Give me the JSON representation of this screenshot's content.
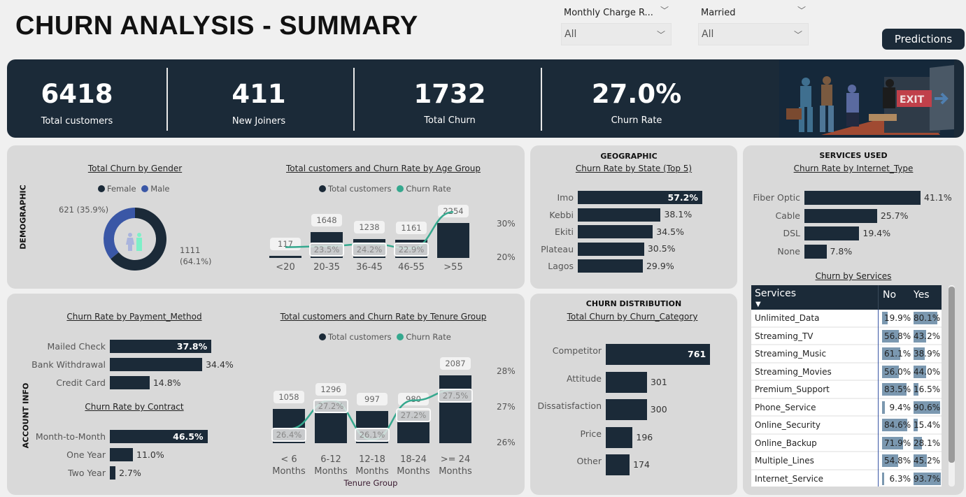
{
  "header": {
    "title": "CHURN ANALYSIS - SUMMARY",
    "predictions_label": "Predictions",
    "filters": [
      {
        "label": "Monthly Charge R...",
        "value": "All"
      },
      {
        "label": "Married",
        "value": "All"
      }
    ]
  },
  "kpis": [
    {
      "value": "6418",
      "label": "Total customers"
    },
    {
      "value": "411",
      "label": "New Joiners"
    },
    {
      "value": "1732",
      "label": "Total Churn"
    },
    {
      "value": "27.0%",
      "label": "Churn Rate"
    }
  ],
  "banner_image": {
    "icon": "people-running-to-exit-illustration",
    "sign_text": "EXIT"
  },
  "colors": {
    "dark": "#1b2a38",
    "male": "#3a57a6",
    "line": "#35a88e",
    "bar_light": "#7b98b0"
  },
  "demographic": {
    "section_label": "DEMOGRAPHIC",
    "gender": {
      "title": "Total Churn by Gender",
      "legend": [
        "Female",
        "Male"
      ],
      "chart_data": {
        "type": "pie",
        "categories": [
          "Female",
          "Male"
        ],
        "values": [
          1111,
          621
        ],
        "percents": [
          64.1,
          35.9
        ],
        "labels": [
          "1111 (64.1%)",
          "621 (35.9%)"
        ]
      }
    },
    "age": {
      "title": "Total customers and Churn Rate by Age Group",
      "legend": [
        "Total customers",
        "Churn Rate"
      ],
      "chart_data": {
        "type": "bar+line",
        "categories": [
          "<20",
          "20-35",
          "36-45",
          "46-55",
          ">55"
        ],
        "series": [
          {
            "name": "Total customers",
            "values": [
              117,
              1648,
              1238,
              1161,
              2254
            ]
          },
          {
            "name": "Churn Rate",
            "values": [
              23.2,
              23.5,
              24.2,
              22.9,
              33.7
            ],
            "labels": [
              "",
              "23.5%",
              "24.2%",
              "22.9%",
              ""
            ]
          }
        ],
        "y2_ticks": [
          "20%",
          "30%"
        ],
        "y2lim": [
          20,
          30
        ]
      }
    }
  },
  "account": {
    "section_label": "ACCOUNT INFO",
    "payment": {
      "title": "Churn Rate by Payment_Method",
      "chart_data": {
        "type": "bar",
        "categories": [
          "Mailed Check",
          "Bank Withdrawal",
          "Credit Card"
        ],
        "values": [
          37.8,
          34.4,
          14.8
        ],
        "labels": [
          "37.8%",
          "34.4%",
          "14.8%"
        ]
      }
    },
    "contract": {
      "title": "Churn Rate by Contract",
      "chart_data": {
        "type": "bar",
        "categories": [
          "Month-to-Month",
          "One Year",
          "Two Year"
        ],
        "values": [
          46.5,
          11.0,
          2.7
        ],
        "labels": [
          "46.5%",
          "11.0%",
          "2.7%"
        ]
      }
    },
    "tenure": {
      "title": "Total customers and Churn Rate by Tenure Group",
      "legend": [
        "Total customers",
        "Churn Rate"
      ],
      "xlabel": "Tenure Group",
      "chart_data": {
        "type": "bar+line",
        "categories": [
          [
            "< 6",
            "Months"
          ],
          [
            "6-12",
            "Months"
          ],
          [
            "12-18",
            "Months"
          ],
          [
            "18-24",
            "Months"
          ],
          [
            ">= 24",
            "Months"
          ]
        ],
        "series": [
          {
            "name": "Total customers",
            "values": [
              1058,
              1296,
              997,
              980,
              2087
            ]
          },
          {
            "name": "Churn Rate",
            "values": [
              26.4,
              27.2,
              26.1,
              27.2,
              27.5
            ],
            "labels": [
              "26.4%",
              "27.2%",
              "26.1%",
              "27.2%",
              "27.5%"
            ]
          }
        ],
        "y2_ticks": [
          "26%",
          "27%",
          "28%"
        ],
        "y2lim": [
          26,
          28
        ]
      }
    }
  },
  "geographic": {
    "section_label": "GEOGRAPHIC",
    "title": "Churn Rate by State (Top 5)",
    "chart_data": {
      "type": "bar",
      "categories": [
        "Imo",
        "Kebbi",
        "Ekiti",
        "Plateau",
        "Lagos"
      ],
      "values": [
        57.2,
        38.1,
        34.5,
        30.5,
        29.9
      ],
      "labels": [
        "57.2%",
        "38.1%",
        "34.5%",
        "30.5%",
        "29.9%"
      ]
    }
  },
  "distribution": {
    "section_label": "CHURN DISTRIBUTION",
    "title": "Total Churn by Churn_Category",
    "chart_data": {
      "type": "bar",
      "categories": [
        "Competitor",
        "Attitude",
        "Dissatisfaction",
        "Price",
        "Other"
      ],
      "values": [
        761,
        301,
        300,
        196,
        174
      ],
      "labels": [
        "761",
        "301",
        "300",
        "196",
        "174"
      ]
    }
  },
  "services": {
    "section_label": "SERVICES USED",
    "internet_title": "Churn Rate by Internet_Type",
    "internet": {
      "chart_data": {
        "type": "bar",
        "categories": [
          "Fiber Optic",
          "Cable",
          "DSL",
          "None"
        ],
        "values": [
          41.1,
          25.7,
          19.4,
          7.8
        ],
        "labels": [
          "41.1%",
          "25.7%",
          "19.4%",
          "7.8%"
        ]
      }
    },
    "table_title": "Churn by Services",
    "table": {
      "columns": [
        "Services",
        "No",
        "Yes"
      ],
      "rows": [
        [
          "Unlimited_Data",
          "19.9%",
          "80.1%"
        ],
        [
          "Streaming_TV",
          "56.8%",
          "43.2%"
        ],
        [
          "Streaming_Music",
          "61.1%",
          "38.9%"
        ],
        [
          "Streaming_Movies",
          "56.0%",
          "44.0%"
        ],
        [
          "Premium_Support",
          "83.5%",
          "16.5%"
        ],
        [
          "Phone_Service",
          "9.4%",
          "90.6%"
        ],
        [
          "Online_Security",
          "84.6%",
          "15.4%"
        ],
        [
          "Online_Backup",
          "71.9%",
          "28.1%"
        ],
        [
          "Multiple_Lines",
          "54.8%",
          "45.2%"
        ],
        [
          "Internet_Service",
          "6.3%",
          "93.7%"
        ]
      ]
    }
  }
}
